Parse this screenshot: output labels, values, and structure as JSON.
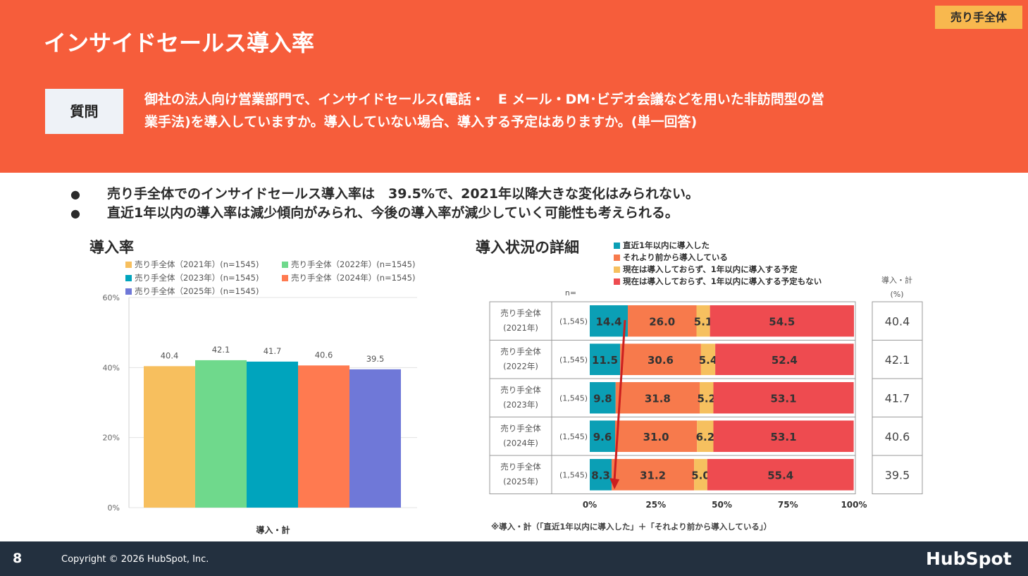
{
  "header": {
    "title": "インサイドセールス導入率",
    "badge": "売り手全体",
    "question_label": "質問",
    "question_line1": "御社の法人向け営業部門で、インサイドセールス(電話・　E メール・DM･ビデオ会議などを用いた非訪問型の営",
    "question_line2": "業手法)を導入していますか。導入していない場合、導入する予定はありますか。(単一回答)"
  },
  "bullets": [
    "売り手全体でのインサイドセールス導入率は　39.5%で、2021年以降大きな変化はみられない。",
    "直近1年以内の導入率は減少傾向がみられ、今後の導入率が減少していく可能性も考えられる。"
  ],
  "bullet_marker": "●",
  "left_chart_title": "導入率",
  "right_chart_title": "導入状況の詳細",
  "chart_data": [
    {
      "type": "bar",
      "title": "導入率",
      "xlabel": "導入・計",
      "ylabel": "",
      "ylim": [
        0,
        60
      ],
      "yticks": [
        "60%",
        "40%",
        "20%",
        "0%"
      ],
      "ytick_values": [
        60,
        40,
        20,
        0
      ],
      "categories": [
        "導入・計"
      ],
      "series": [
        {
          "name": "売り手全体（2021年）(n=1545)",
          "color": "#f7bf5e",
          "value": 40.4,
          "label": "40.4"
        },
        {
          "name": "売り手全体（2022年）(n=1545)",
          "color": "#6fd98c",
          "value": 42.1,
          "label": "42.1"
        },
        {
          "name": "売り手全体（2023年）(n=1545)",
          "color": "#00a4bd",
          "value": 41.7,
          "label": "41.7"
        },
        {
          "name": "売り手全体（2024年）(n=1545)",
          "color": "#ff7a50",
          "value": 40.6,
          "label": "40.6"
        },
        {
          "name": "売り手全体（2025年）(n=1545)",
          "color": "#6f78d8",
          "value": 39.5,
          "label": "39.5"
        }
      ]
    },
    {
      "type": "bar",
      "orientation": "horizontal-stacked",
      "title": "導入状況の詳細",
      "n_header": "n=",
      "total_header_line1": "導入・計",
      "total_header_line2": "(%)",
      "xticks": [
        "0%",
        "25%",
        "50%",
        "75%",
        "100%"
      ],
      "xtick_values": [
        0,
        25,
        50,
        75,
        100
      ],
      "legend": [
        {
          "name": "直近1年以内に導入した",
          "color": "#0b9fb5"
        },
        {
          "name": "それより前から導入している",
          "color": "#f77a4c"
        },
        {
          "name": "現在は導入しておらず、1年以内に導入する予定",
          "color": "#f6c05f"
        },
        {
          "name": "現在は導入しておらず、1年以内に導入する予定もない",
          "color": "#ee4b50"
        }
      ],
      "rows": [
        {
          "label1": "売り手全体",
          "label2": "(2021年)",
          "n": "(1,545)",
          "values": [
            14.4,
            26.0,
            5.1,
            54.5
          ],
          "labels": [
            "14.4",
            "26.0",
            "5.1",
            "54.5"
          ],
          "total": "40.4"
        },
        {
          "label1": "売り手全体",
          "label2": "(2022年)",
          "n": "(1,545)",
          "values": [
            11.5,
            30.6,
            5.4,
            52.4
          ],
          "labels": [
            "11.5",
            "30.6",
            "5.4",
            "52.4"
          ],
          "total": "42.1"
        },
        {
          "label1": "売り手全体",
          "label2": "(2023年)",
          "n": "(1,545)",
          "values": [
            9.8,
            31.8,
            5.2,
            53.1
          ],
          "labels": [
            "9.8",
            "31.8",
            "5.2",
            "53.1"
          ],
          "total": "41.7"
        },
        {
          "label1": "売り手全体",
          "label2": "(2024年)",
          "n": "(1,545)",
          "values": [
            9.6,
            31.0,
            6.2,
            53.1
          ],
          "labels": [
            "9.6",
            "31.0",
            "6.2",
            "53.1"
          ],
          "total": "40.6"
        },
        {
          "label1": "売り手全体",
          "label2": "(2025年)",
          "n": "(1,545)",
          "values": [
            8.3,
            31.2,
            5.0,
            55.4
          ],
          "labels": [
            "8.3",
            "31.2",
            "5.0",
            "55.4"
          ],
          "total": "39.5"
        }
      ],
      "footnote": "※導入・計（「直近1年以内に導入した」＋「それより前から導入している」）",
      "trend_arrow_color": "#cc1f1f"
    }
  ],
  "footer": {
    "page_number": "8",
    "copyright": "Copyright © 2026 HubSpot, Inc.",
    "logo": "HubSpot"
  }
}
